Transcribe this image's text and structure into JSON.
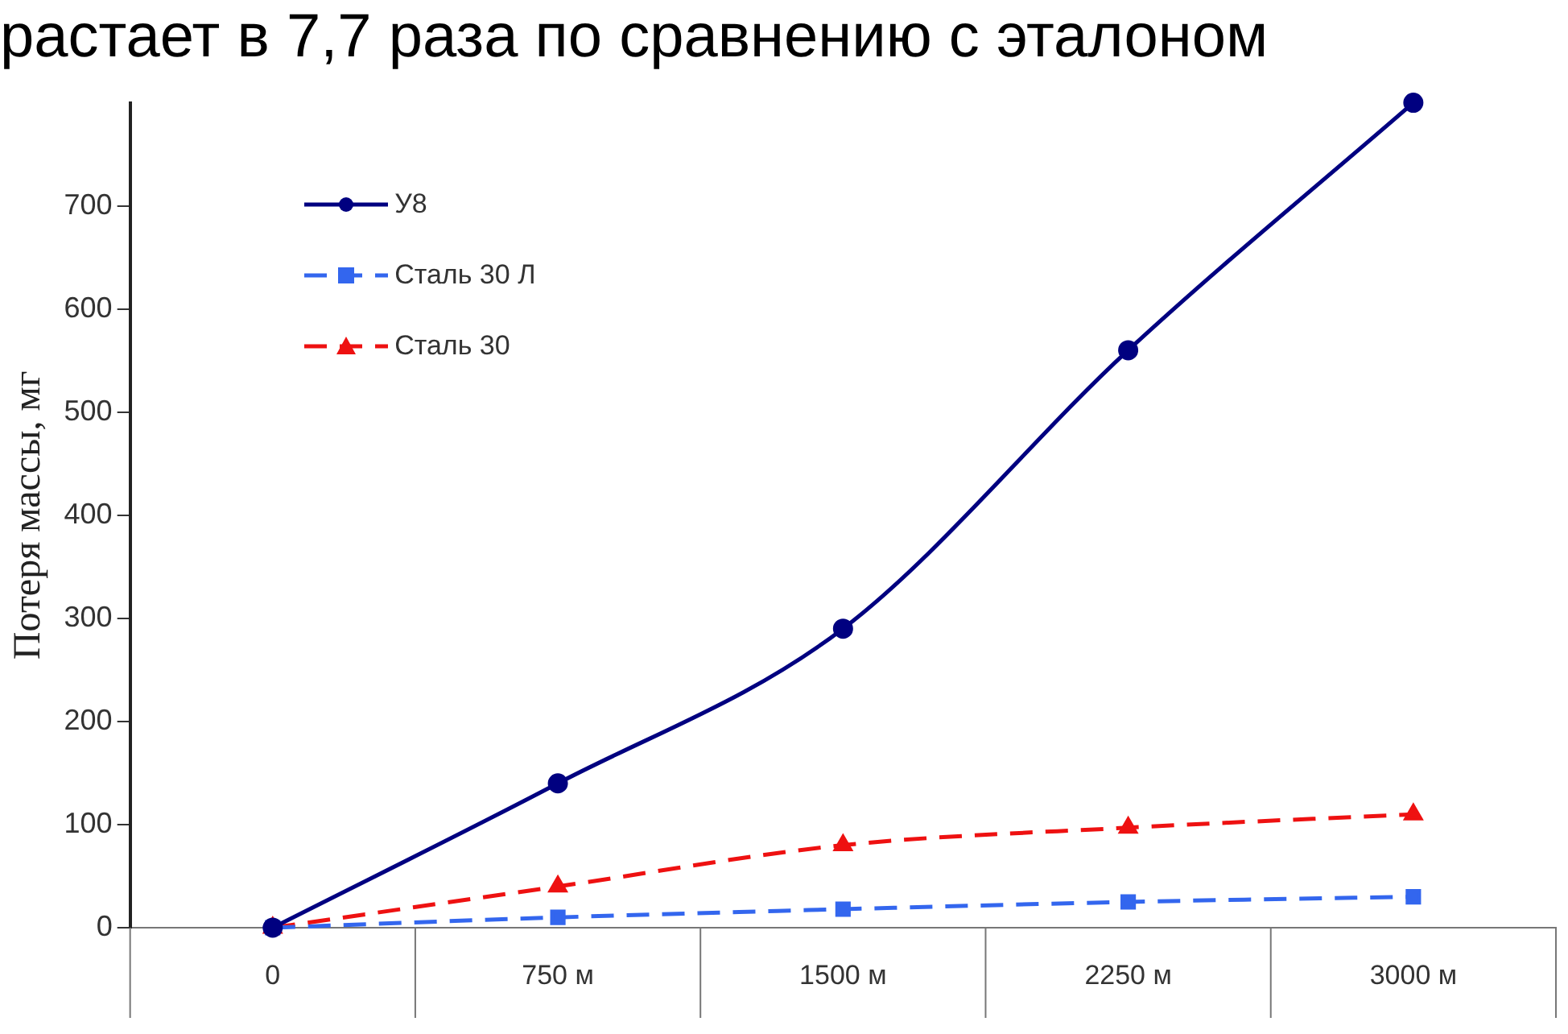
{
  "chart_data": {
    "type": "line",
    "title": "растает в 7,7 раза по сравнению с эталоном",
    "ylabel": "Потеря массы, мг",
    "categories": [
      "0",
      "750 м",
      "1500 м",
      "2250 м",
      "3000 м"
    ],
    "series": [
      {
        "name": "У8",
        "color": "#000080",
        "marker": "circle",
        "line_style": "solid",
        "values": [
          0,
          140,
          290,
          560,
          800
        ]
      },
      {
        "name": "Сталь 30 Л",
        "color": "#3366ee",
        "marker": "square",
        "line_style": "dashed",
        "values": [
          0,
          10,
          18,
          25,
          30
        ]
      },
      {
        "name": "Сталь 30",
        "color": "#ee1111",
        "marker": "triangle",
        "line_style": "dashed",
        "values": [
          0,
          40,
          80,
          97,
          110
        ]
      }
    ],
    "ylim": [
      0,
      800
    ],
    "yticks": [
      0,
      100,
      200,
      300,
      400,
      500,
      600,
      700
    ],
    "grid": false,
    "legend": "top left"
  }
}
